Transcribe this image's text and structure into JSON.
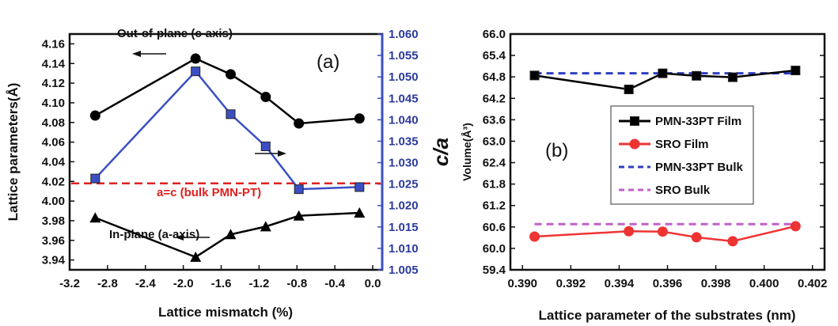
{
  "chart_data": [
    {
      "type": "line",
      "panel_label": "(a)",
      "xlabel": "Lattice mismatch (%)",
      "ylabel": "Lattice parameters(Å)",
      "y2label": "c/a",
      "xlim": [
        -3.2,
        0.1
      ],
      "ylim": [
        3.93,
        4.17
      ],
      "y2lim": [
        1.005,
        1.06
      ],
      "xticks": [
        "-3.2",
        "-2.8",
        "-2.4",
        "-2.0",
        "-1.6",
        "-1.2",
        "-0.8",
        "-0.4",
        "0.0"
      ],
      "yticks": [
        "3.94",
        "3.96",
        "3.98",
        "4.00",
        "4.02",
        "4.04",
        "4.06",
        "4.08",
        "4.10",
        "4.12",
        "4.14",
        "4.16"
      ],
      "y2ticks": [
        "1.005",
        "1.010",
        "1.015",
        "1.020",
        "1.025",
        "1.030",
        "1.035",
        "1.040",
        "1.045",
        "1.050",
        "1.055",
        "1.060"
      ],
      "series": [
        {
          "axis": "left",
          "color": "#000000",
          "marker": "circle",
          "x": [
            -2.93,
            -1.87,
            -1.5,
            -1.13,
            -0.78,
            -0.14
          ],
          "y": [
            4.087,
            4.145,
            4.129,
            4.106,
            4.079,
            4.084
          ]
        },
        {
          "axis": "left",
          "color": "#000000",
          "marker": "triangle",
          "x": [
            -2.93,
            -1.87,
            -1.5,
            -1.13,
            -0.78,
            -0.14
          ],
          "y": [
            3.983,
            3.943,
            3.966,
            3.974,
            3.985,
            3.988
          ]
        },
        {
          "axis": "right",
          "color": "#3b4fc4",
          "marker": "square",
          "x": [
            -2.93,
            -1.87,
            -1.5,
            -1.13,
            -0.78,
            -0.14
          ],
          "y": [
            1.0263,
            1.0513,
            1.0413,
            1.0338,
            1.0238,
            1.0243
          ]
        }
      ],
      "reference_line": {
        "label": "a=c (bulk PMN-PT)",
        "y": 4.018,
        "color": "#e02020",
        "style": "dashed"
      },
      "annotations": {
        "out_of_plane": "Out-of-plane (c-axis)",
        "in_plane": "In-plane (a-axis)"
      }
    },
    {
      "type": "line",
      "panel_label": "(b)",
      "xlabel": "Lattice parameter of the substrates (nm)",
      "ylabel": "Volume(Å³)",
      "xlim": [
        0.3895,
        0.4025
      ],
      "ylim": [
        59.4,
        66.0
      ],
      "xticks": [
        "0.390",
        "0.392",
        "0.394",
        "0.396",
        "0.398",
        "0.400",
        "0.402"
      ],
      "yticks": [
        "59.4",
        "60.0",
        "60.6",
        "61.2",
        "61.8",
        "62.4",
        "63.0",
        "63.6",
        "64.2",
        "64.8",
        "65.4",
        "66.0"
      ],
      "legend_position": "center",
      "series": [
        {
          "name": "PMN-33PT Film",
          "color": "#000000",
          "marker": "square",
          "style": "solid",
          "x": [
            0.3905,
            0.3944,
            0.3958,
            0.3972,
            0.3987,
            0.4013
          ],
          "y": [
            64.84,
            64.45,
            64.9,
            64.83,
            64.79,
            64.98
          ]
        },
        {
          "name": "SRO Film",
          "color": "#ee3333",
          "marker": "circle",
          "style": "solid",
          "x": [
            0.3905,
            0.3944,
            0.3958,
            0.3972,
            0.3987,
            0.4013
          ],
          "y": [
            60.33,
            60.48,
            60.47,
            60.31,
            60.2,
            60.62
          ]
        },
        {
          "name": "PMN-33PT Bulk",
          "color": "#2f3fc0",
          "style": "dashed",
          "x": [
            0.3905,
            0.4013
          ],
          "y": [
            64.9,
            64.9
          ]
        },
        {
          "name": "SRO Bulk",
          "color": "#c060c8",
          "style": "dashed",
          "x": [
            0.3905,
            0.4013
          ],
          "y": [
            60.68,
            60.68
          ]
        }
      ]
    }
  ]
}
